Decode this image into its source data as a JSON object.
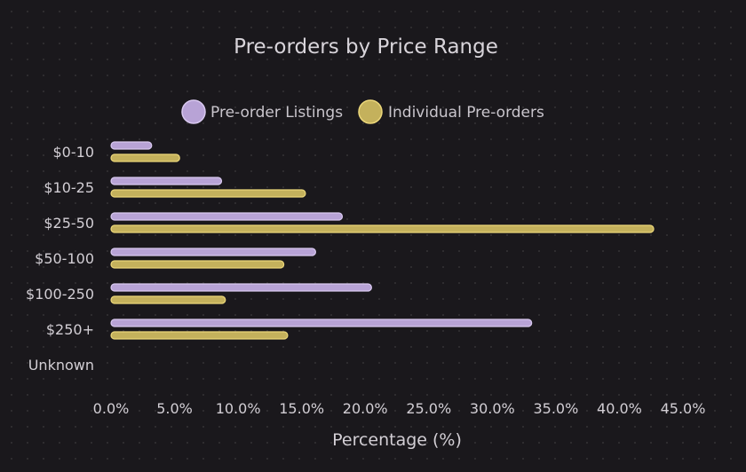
{
  "chart_data": {
    "type": "bar",
    "orientation": "horizontal",
    "title": "Pre-orders by Price Range",
    "xlabel": "Percentage (%)",
    "ylabel": "",
    "categories": [
      "$0-10",
      "$10-25",
      "$25-50",
      "$50-100",
      "$100-250",
      "$250+",
      "Unknown"
    ],
    "series": [
      {
        "name": "Pre-order Listings",
        "values": [
          3.2,
          8.7,
          18.2,
          16.1,
          20.5,
          33.1,
          0
        ],
        "color": "#b8a3d6",
        "stroke": "#d9c9f0"
      },
      {
        "name": "Individual Pre-orders",
        "values": [
          5.4,
          15.3,
          42.7,
          13.6,
          9.0,
          13.9,
          0
        ],
        "color": "#c4b15c",
        "stroke": "#ecd77a"
      }
    ],
    "xlim": [
      0,
      45
    ],
    "xticks": [
      "0.0%",
      "5.0%",
      "10.0%",
      "15.0%",
      "20.0%",
      "25.0%",
      "30.0%",
      "35.0%",
      "40.0%",
      "45.0%"
    ],
    "legend_position": "top-center",
    "grid": false
  }
}
